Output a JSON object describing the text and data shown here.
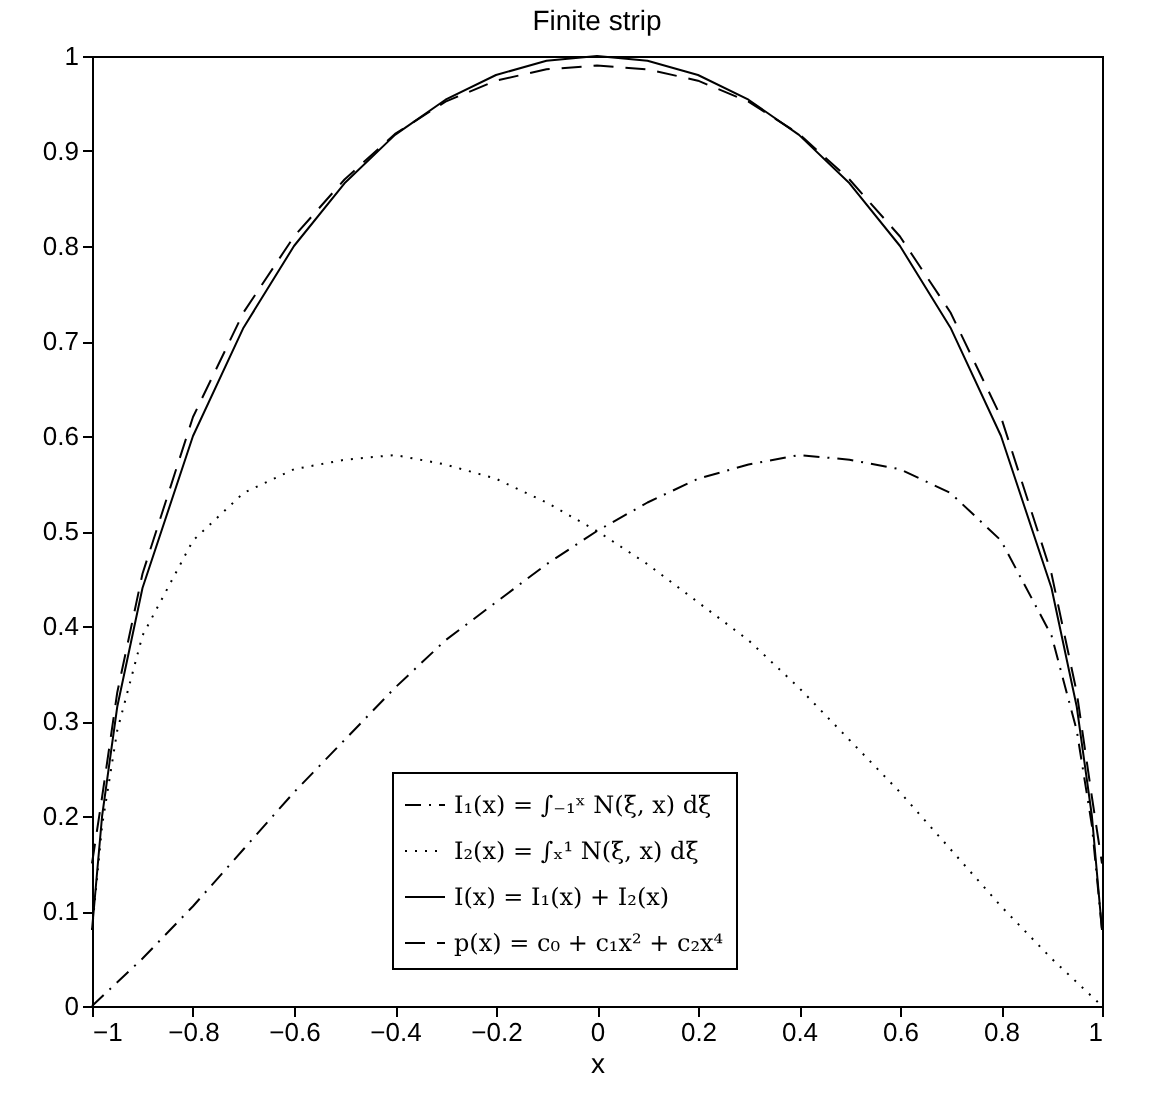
{
  "chart_data": {
    "type": "line",
    "title": "Finite strip",
    "xlabel": "x",
    "x": [
      -1,
      -0.98,
      -0.95,
      -0.9,
      -0.8,
      -0.7,
      -0.6,
      -0.5,
      -0.4,
      -0.3,
      -0.2,
      -0.1,
      0,
      0.1,
      0.2,
      0.3,
      0.4,
      0.5,
      0.6,
      0.7,
      0.8,
      0.9,
      0.95,
      0.98,
      1
    ],
    "series": [
      {
        "name": "I₁(x) = ∫₋₁ˣ N(ξ, x) dξ",
        "color": "#000000",
        "line_style": "dashdot",
        "values": [
          0,
          0.01,
          0.025,
          0.05,
          0.105,
          0.165,
          0.225,
          0.28,
          0.335,
          0.385,
          0.425,
          0.465,
          0.5,
          0.53,
          0.555,
          0.57,
          0.58,
          0.575,
          0.565,
          0.54,
          0.49,
          0.39,
          0.29,
          0.19,
          0.08
        ]
      },
      {
        "name": "I₂(x) = ∫ₓ¹ N(ξ, x) dξ",
        "color": "#000000",
        "line_style": "dotted",
        "values": [
          0.08,
          0.19,
          0.29,
          0.39,
          0.49,
          0.54,
          0.565,
          0.575,
          0.58,
          0.57,
          0.555,
          0.53,
          0.5,
          0.465,
          0.425,
          0.385,
          0.335,
          0.28,
          0.225,
          0.165,
          0.105,
          0.05,
          0.025,
          0.01,
          0
        ]
      },
      {
        "name": "I(x) = I₁(x) + I₂(x)",
        "color": "#000000",
        "line_style": "solid",
        "values": [
          0.08,
          0.2,
          0.315,
          0.44,
          0.6,
          0.714,
          0.8,
          0.866,
          0.917,
          0.954,
          0.98,
          0.995,
          1,
          0.995,
          0.98,
          0.954,
          0.917,
          0.866,
          0.8,
          0.714,
          0.6,
          0.44,
          0.315,
          0.2,
          0.08
        ]
      },
      {
        "name": "p(x) = c₀ + c₁x² + c₂x⁴",
        "color": "#000000",
        "line_style": "dashed",
        "values": [
          0.15,
          0.22,
          0.33,
          0.455,
          0.62,
          0.73,
          0.81,
          0.87,
          0.918,
          0.952,
          0.974,
          0.986,
          0.99,
          0.986,
          0.974,
          0.952,
          0.918,
          0.87,
          0.81,
          0.73,
          0.62,
          0.455,
          0.33,
          0.22,
          0.15
        ]
      }
    ],
    "xlim": [
      -1,
      1
    ],
    "xticks": [
      -1,
      -0.8,
      -0.6,
      -0.4,
      -0.2,
      0,
      0.2,
      0.4,
      0.6,
      0.8,
      1
    ],
    "ylim": [
      0,
      1
    ],
    "yticks": [
      0,
      0.1,
      0.2,
      0.3,
      0.4,
      0.5,
      0.6,
      0.7,
      0.8,
      0.9,
      1
    ],
    "grid": false,
    "legend": "bottom",
    "marker": "none"
  }
}
